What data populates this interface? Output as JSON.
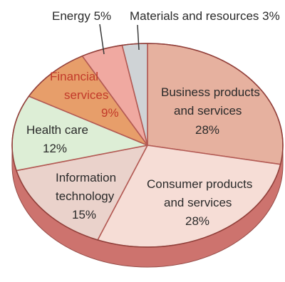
{
  "chart_data": {
    "type": "pie",
    "title": "",
    "slices": [
      {
        "label": "Business products and services",
        "value": 28,
        "display": "28%",
        "color": "#e6b19f"
      },
      {
        "label": "Consumer products and services",
        "value": 28,
        "display": "28%",
        "color": "#f6ddd6"
      },
      {
        "label": "Information technology",
        "value": 15,
        "display": "15%",
        "color": "#ead2cb"
      },
      {
        "label": "Health care",
        "value": 12,
        "display": "12%",
        "color": "#ddeed6"
      },
      {
        "label": "Financial services",
        "value": 9,
        "display": "9%",
        "color": "#e79e6a"
      },
      {
        "label": "Energy",
        "value": 5,
        "display": "5%",
        "color": "#f0a9a1"
      },
      {
        "label": "Materials and resources",
        "value": 3,
        "display": "3%",
        "color": "#cfd3d6"
      }
    ],
    "labels": {
      "business": [
        "Business products",
        "and services",
        "28%"
      ],
      "consumer": [
        "Consumer products",
        "and services",
        "28%"
      ],
      "it": [
        "Information",
        "technology",
        "15%"
      ],
      "health": [
        "Health care",
        "12%"
      ],
      "financial": [
        "Financial",
        "services",
        "9%"
      ],
      "energy": "Energy 5%",
      "materials": "Materials and resources 3%"
    },
    "start_angle": "12 o'clock",
    "direction": "clockwise",
    "edge_color": "#c7605a"
  }
}
